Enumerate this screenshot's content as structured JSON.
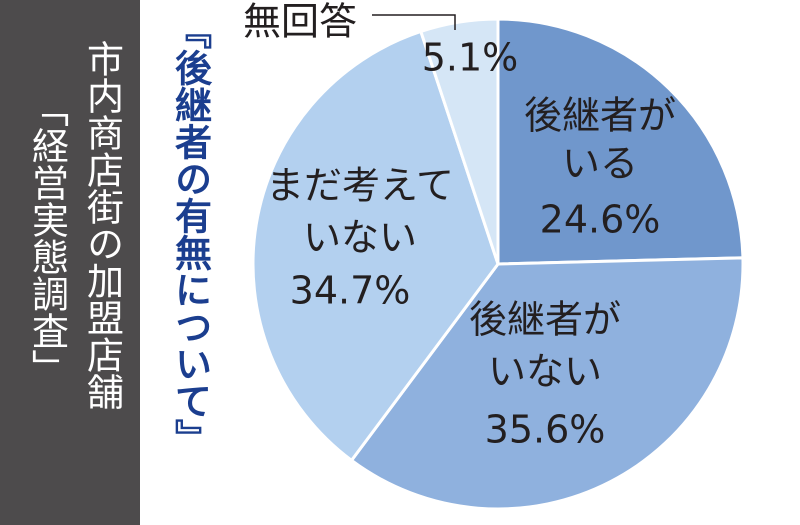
{
  "chart_data": {
    "type": "pie",
    "title": "『後継者の有無について』",
    "side_caption": [
      "市内商店街の加盟店舗",
      "「経営実態調査」"
    ],
    "categories": [
      [
        "後継者が",
        "いる"
      ],
      [
        "後継者が",
        "いない"
      ],
      [
        "まだ考えて",
        "いない"
      ],
      [
        "無回答"
      ]
    ],
    "values": [
      24.6,
      35.6,
      34.7,
      5.1
    ],
    "value_labels": [
      "24.6%",
      "35.6%",
      "34.7%",
      "5.1%"
    ],
    "colors": [
      "#7097cc",
      "#8fb1de",
      "#b3d0ef",
      "#d5e6f6"
    ]
  }
}
